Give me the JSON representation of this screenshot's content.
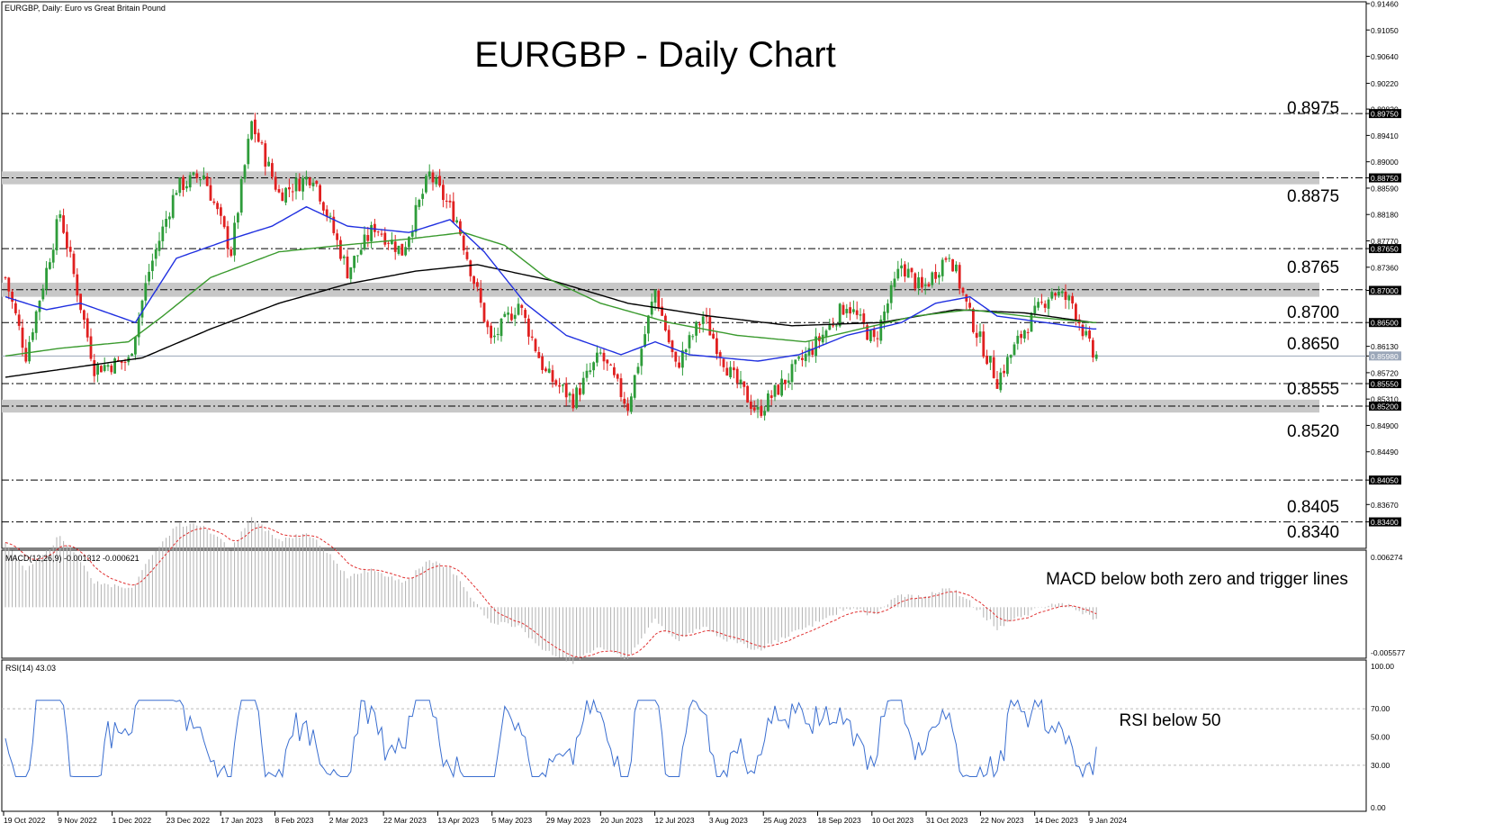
{
  "header": {
    "info": "EURGBP, Daily:  Euro vs Great Britain Pound",
    "title": "EURGBP - Daily Chart"
  },
  "annotations": {
    "macd_note": "MACD below both zero and trigger lines",
    "rsi_note": "RSI below 50"
  },
  "colors": {
    "bull": "#2e9c3a",
    "bear": "#e02020",
    "sma_fast": "#2030e0",
    "sma_mid": "#3a9a2e",
    "sma_slow": "#000000",
    "zone": "#c8c8c8",
    "macd_signal": "#e03030",
    "rsi_line": "#3a6ed0",
    "hist": "#b0b0b0"
  },
  "chart_data": [
    {
      "type": "candlestick",
      "title": "EURGBP - Daily Chart",
      "ylim": [
        0.831,
        0.9146
      ],
      "price_axis_ticks": [
        "0.91460",
        "0.91050",
        "0.90640",
        "0.90220",
        "0.89820",
        "0.89750",
        "0.89410",
        "0.89000",
        "0.88750",
        "0.88590",
        "0.88180",
        "0.87770",
        "0.87650",
        "0.87360",
        "0.87000",
        "0.86500",
        "0.86130",
        "0.85980",
        "0.85720",
        "0.85550",
        "0.85310",
        "0.85200",
        "0.84900",
        "0.84490",
        "0.84050",
        "0.83670",
        "0.83400"
      ],
      "level_labels": [
        "0.8975",
        "0.8875",
        "0.8765",
        "0.8700",
        "0.8650",
        "0.8555",
        "0.8520",
        "0.8405",
        "0.8340"
      ],
      "levels": [
        0.8975,
        0.8765,
        0.865,
        0.8555,
        0.8405,
        0.834
      ],
      "zones": [
        [
          0.8865,
          0.8885
        ],
        [
          0.869,
          0.8712
        ],
        [
          0.851,
          0.853
        ]
      ],
      "current_price": 0.8598,
      "date_labels": [
        "19 Oct 2022",
        "9 Nov 2022",
        "1 Dec 2022",
        "23 Dec 2022",
        "17 Jan 2023",
        "8 Feb 2023",
        "2 Mar 2023",
        "22 Mar 2023",
        "13 Apr 2023",
        "5 May 2023",
        "29 May 2023",
        "20 Jun 2023",
        "12 Jul 2023",
        "3 Aug 2023",
        "25 Aug 2023",
        "18 Sep 2023",
        "10 Oct 2023",
        "31 Oct 2023",
        "22 Nov 2023",
        "14 Dec 2023",
        "9 Jan 2024"
      ],
      "close_path": [
        [
          0,
          0.872
        ],
        [
          6,
          0.86
        ],
        [
          16,
          0.882
        ],
        [
          26,
          0.858
        ],
        [
          36,
          0.859
        ],
        [
          42,
          0.873
        ],
        [
          50,
          0.886
        ],
        [
          58,
          0.888
        ],
        [
          66,
          0.876
        ],
        [
          72,
          0.896
        ],
        [
          80,
          0.885
        ],
        [
          90,
          0.888
        ],
        [
          100,
          0.873
        ],
        [
          108,
          0.88
        ],
        [
          116,
          0.876
        ],
        [
          124,
          0.888
        ],
        [
          132,
          0.881
        ],
        [
          142,
          0.862
        ],
        [
          150,
          0.868
        ],
        [
          158,
          0.857
        ],
        [
          166,
          0.853
        ],
        [
          174,
          0.86
        ],
        [
          182,
          0.852
        ],
        [
          190,
          0.87
        ],
        [
          196,
          0.858
        ],
        [
          204,
          0.866
        ],
        [
          212,
          0.857
        ],
        [
          220,
          0.851
        ],
        [
          228,
          0.856
        ],
        [
          236,
          0.861
        ],
        [
          246,
          0.868
        ],
        [
          254,
          0.862
        ],
        [
          262,
          0.874
        ],
        [
          268,
          0.87
        ],
        [
          276,
          0.876
        ],
        [
          282,
          0.866
        ],
        [
          290,
          0.856
        ],
        [
          298,
          0.864
        ],
        [
          306,
          0.87
        ],
        [
          312,
          0.868
        ],
        [
          318,
          0.8598
        ]
      ],
      "sma_fast_path": [
        [
          0,
          0.869
        ],
        [
          12,
          0.867
        ],
        [
          22,
          0.868
        ],
        [
          38,
          0.865
        ],
        [
          50,
          0.875
        ],
        [
          66,
          0.878
        ],
        [
          78,
          0.88
        ],
        [
          88,
          0.883
        ],
        [
          100,
          0.88
        ],
        [
          118,
          0.879
        ],
        [
          130,
          0.881
        ],
        [
          140,
          0.876
        ],
        [
          152,
          0.868
        ],
        [
          164,
          0.863
        ],
        [
          180,
          0.86
        ],
        [
          190,
          0.862
        ],
        [
          200,
          0.86
        ],
        [
          210,
          0.8595
        ],
        [
          220,
          0.859
        ],
        [
          232,
          0.86
        ],
        [
          246,
          0.863
        ],
        [
          262,
          0.865
        ],
        [
          272,
          0.868
        ],
        [
          282,
          0.869
        ],
        [
          290,
          0.866
        ],
        [
          304,
          0.865
        ],
        [
          318,
          0.864
        ]
      ],
      "sma_mid_path": [
        [
          0,
          0.8598
        ],
        [
          16,
          0.861
        ],
        [
          36,
          0.862
        ],
        [
          46,
          0.866
        ],
        [
          60,
          0.872
        ],
        [
          80,
          0.876
        ],
        [
          98,
          0.877
        ],
        [
          118,
          0.878
        ],
        [
          134,
          0.879
        ],
        [
          146,
          0.877
        ],
        [
          158,
          0.872
        ],
        [
          174,
          0.868
        ],
        [
          194,
          0.865
        ],
        [
          214,
          0.863
        ],
        [
          234,
          0.862
        ],
        [
          250,
          0.864
        ],
        [
          266,
          0.866
        ],
        [
          282,
          0.867
        ],
        [
          298,
          0.866
        ],
        [
          318,
          0.865
        ]
      ],
      "sma_slow_path": [
        [
          0,
          0.8565
        ],
        [
          20,
          0.858
        ],
        [
          40,
          0.8595
        ],
        [
          60,
          0.864
        ],
        [
          80,
          0.868
        ],
        [
          100,
          0.871
        ],
        [
          120,
          0.873
        ],
        [
          138,
          0.874
        ],
        [
          160,
          0.8715
        ],
        [
          182,
          0.868
        ],
        [
          206,
          0.866
        ],
        [
          230,
          0.8645
        ],
        [
          256,
          0.865
        ],
        [
          278,
          0.867
        ],
        [
          298,
          0.8665
        ],
        [
          318,
          0.865
        ]
      ]
    },
    {
      "type": "histogram",
      "title": "MACD(12,26,9) -0.001312 -0.000621",
      "ylim": [
        -0.005577,
        0.006274
      ],
      "axis_ticks": [
        "0.006274",
        "-0.005577"
      ],
      "series": [
        {
          "name": "signal"
        }
      ]
    },
    {
      "type": "line",
      "title": "RSI(14) 43.03",
      "ylim": [
        0,
        100
      ],
      "axis_ticks": [
        "100.00",
        "70.00",
        "50.00",
        "30.00",
        "0.00"
      ],
      "levels": [
        70,
        30
      ],
      "last_value": 43.03
    }
  ]
}
